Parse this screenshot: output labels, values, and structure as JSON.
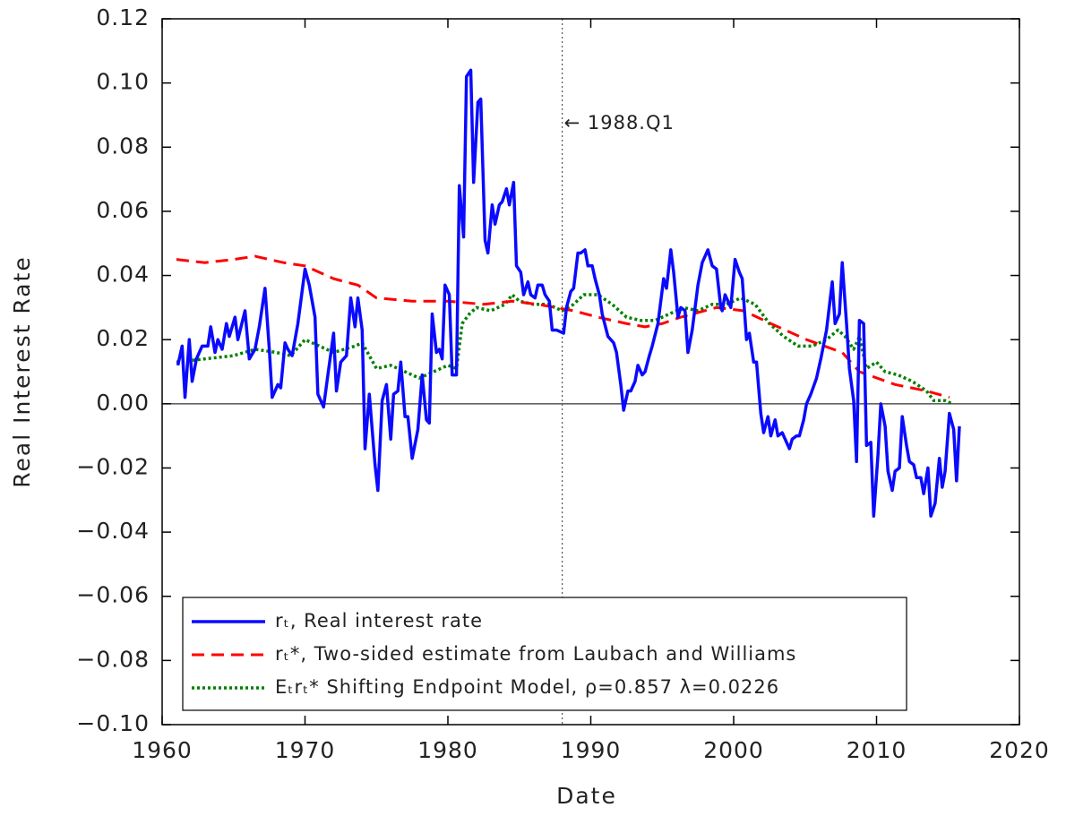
{
  "chart_data": {
    "type": "line",
    "xlabel": "Date",
    "ylabel": "Real Interest Rate",
    "xlim": [
      1960,
      2020
    ],
    "xticks": [
      1960,
      1970,
      1980,
      1990,
      2000,
      2010,
      2020
    ],
    "ylim": [
      -0.1,
      0.12
    ],
    "yticks": [
      0.12,
      {
        "value": 0.1,
        "label": "0.10"
      },
      0.08,
      0.06,
      0.04,
      0.02,
      {
        "value": 0,
        "label": "0.00"
      },
      {
        "value": -0.02,
        "label": "−0.02"
      },
      {
        "value": -0.04,
        "label": "−0.04"
      },
      {
        "value": -0.06,
        "label": "−0.06"
      },
      {
        "value": -0.08,
        "label": "−0.08"
      },
      {
        "value": -0.1,
        "label": "−0.10"
      }
    ],
    "hline": 0,
    "vline": {
      "x": 1988,
      "label": "← 1988.Q1"
    },
    "legend": "lower left",
    "series": [
      {
        "name": "rₜ, Real interest rate",
        "color": "#0a0aff",
        "dash": "solid",
        "x": [
          1961.1,
          1961.4,
          1961.6,
          1961.9,
          1962.1,
          1962.4,
          1962.8,
          1963.2,
          1963.4,
          1963.7,
          1963.9,
          1964.2,
          1964.5,
          1964.7,
          1965.1,
          1965.3,
          1965.8,
          1966.1,
          1966.5,
          1966.8,
          1967.2,
          1967.5,
          1967.7,
          1968.1,
          1968.3,
          1968.6,
          1968.8,
          1969.1,
          1969.5,
          1970.0,
          1970.3,
          1970.7,
          1970.9,
          1971.3,
          1971.6,
          1972.0,
          1972.2,
          1972.5,
          1972.9,
          1973.2,
          1973.5,
          1973.7,
          1974.0,
          1974.2,
          1974.5,
          1974.9,
          1975.1,
          1975.4,
          1975.7,
          1976.0,
          1976.2,
          1976.5,
          1976.7,
          1977.0,
          1977.2,
          1977.5,
          1977.9,
          1978.2,
          1978.5,
          1978.7,
          1978.9,
          1979.2,
          1979.4,
          1979.6,
          1979.8,
          1980.1,
          1980.3,
          1980.6,
          1980.8,
          1981.1,
          1981.3,
          1981.6,
          1981.8,
          1982.1,
          1982.3,
          1982.6,
          1982.8,
          1983.1,
          1983.3,
          1983.6,
          1983.8,
          1984.1,
          1984.3,
          1984.6,
          1984.8,
          1985.1,
          1985.3,
          1985.6,
          1985.8,
          1986.1,
          1986.3,
          1986.6,
          1986.8,
          1987.1,
          1987.3,
          1987.6,
          1988.1,
          1988.3,
          1988.6,
          1988.8,
          1989.1,
          1989.3,
          1989.6,
          1989.8,
          1990.1,
          1990.3,
          1990.6,
          1990.8,
          1991.2,
          1991.6,
          1991.8,
          1992.1,
          1992.3,
          1992.6,
          1992.8,
          1993.1,
          1993.3,
          1993.6,
          1993.8,
          1994.1,
          1994.3,
          1994.7,
          1995.1,
          1995.3,
          1995.6,
          1995.8,
          1996.1,
          1996.3,
          1996.6,
          1996.8,
          1997.1,
          1997.5,
          1997.8,
          1998.2,
          1998.5,
          1998.8,
          1999.1,
          1999.2,
          1999.4,
          1999.8,
          2000.1,
          2000.4,
          2000.6,
          2000.9,
          2001.1,
          2001.4,
          2001.6,
          2001.9,
          2002.1,
          2002.4,
          2002.6,
          2002.9,
          2003.1,
          2003.4,
          2003.6,
          2003.9,
          2004.1,
          2004.4,
          2004.6,
          2004.9,
          2005.1,
          2005.4,
          2005.8,
          2006.1,
          2006.5,
          2006.9,
          2007.1,
          2007.4,
          2007.6,
          2007.9,
          2008.1,
          2008.4,
          2008.6,
          2008.8,
          2009.1,
          2009.3,
          2009.6,
          2009.8,
          2010.1,
          2010.3,
          2010.6,
          2010.8,
          2011.1,
          2011.3,
          2011.6,
          2011.8,
          2012.1,
          2012.3,
          2012.6,
          2012.8,
          2013.1,
          2013.3,
          2013.6,
          2013.8,
          2014.1,
          2014.4,
          2014.6,
          2014.8,
          2015.1,
          2015.4,
          2015.6,
          2015.8
        ],
        "values": [
          0.012,
          0.018,
          0.002,
          0.02,
          0.007,
          0.014,
          0.018,
          0.018,
          0.024,
          0.016,
          0.02,
          0.017,
          0.025,
          0.021,
          0.027,
          0.02,
          0.029,
          0.014,
          0.017,
          0.024,
          0.036,
          0.017,
          0.002,
          0.006,
          0.005,
          0.019,
          0.017,
          0.015,
          0.025,
          0.042,
          0.037,
          0.027,
          0.003,
          -0.001,
          0.009,
          0.022,
          0.004,
          0.013,
          0.015,
          0.033,
          0.024,
          0.033,
          0.023,
          -0.014,
          0.003,
          -0.019,
          -0.027,
          0.001,
          0.006,
          -0.011,
          0.003,
          0.004,
          0.013,
          -0.004,
          -0.004,
          -0.017,
          -0.008,
          0.009,
          -0.005,
          -0.006,
          0.028,
          0.016,
          0.017,
          0.014,
          0.037,
          0.034,
          0.009,
          0.009,
          0.068,
          0.052,
          0.102,
          0.104,
          0.069,
          0.094,
          0.095,
          0.051,
          0.047,
          0.062,
          0.056,
          0.062,
          0.063,
          0.067,
          0.062,
          0.069,
          0.043,
          0.041,
          0.034,
          0.038,
          0.034,
          0.033,
          0.037,
          0.037,
          0.034,
          0.032,
          0.023,
          0.023,
          0.022,
          0.03,
          0.035,
          0.036,
          0.047,
          0.047,
          0.048,
          0.043,
          0.043,
          0.039,
          0.034,
          0.028,
          0.021,
          0.019,
          0.016,
          0.006,
          -0.002,
          0.004,
          0.004,
          0.007,
          0.012,
          0.009,
          0.01,
          0.015,
          0.018,
          0.025,
          0.039,
          0.036,
          0.048,
          0.041,
          0.027,
          0.03,
          0.029,
          0.016,
          0.023,
          0.037,
          0.044,
          0.048,
          0.043,
          0.042,
          0.03,
          0.029,
          0.034,
          0.03,
          0.045,
          0.041,
          0.039,
          0.02,
          0.022,
          0.013,
          0.013,
          -0.003,
          -0.009,
          -0.004,
          -0.01,
          -0.005,
          -0.01,
          -0.009,
          -0.011,
          -0.014,
          -0.011,
          -0.01,
          -0.01,
          -0.005,
          0.0,
          0.003,
          0.008,
          0.014,
          0.023,
          0.038,
          0.025,
          0.028,
          0.044,
          0.025,
          0.011,
          0.001,
          -0.018,
          0.026,
          0.025,
          -0.013,
          -0.012,
          -0.035,
          -0.016,
          0.0,
          -0.007,
          -0.021,
          -0.027,
          -0.021,
          -0.02,
          -0.004,
          -0.013,
          -0.018,
          -0.019,
          -0.023,
          -0.023,
          -0.028,
          -0.02,
          -0.035,
          -0.031,
          -0.017,
          -0.026,
          -0.021,
          -0.003,
          -0.008,
          -0.024,
          -0.007
        ]
      },
      {
        "name": "rₜ*, Two-sided estimate from Laubach and Williams",
        "color": "#ff0000",
        "dash": "dashed",
        "x": [
          1961,
          1963,
          1965,
          1966.5,
          1968.5,
          1970,
          1972,
          1973.7,
          1975,
          1977.5,
          1980,
          1982.5,
          1984.5,
          1986.3,
          1988.8,
          1990.5,
          1992.5,
          1993.8,
          1995,
          1996.3,
          1998.8,
          2000.7,
          2002.6,
          2005.1,
          2007.6,
          2008.8,
          2011.3,
          2013.5,
          2015.1
        ],
        "values": [
          0.045,
          0.044,
          0.045,
          0.046,
          0.044,
          0.043,
          0.039,
          0.037,
          0.033,
          0.032,
          0.032,
          0.031,
          0.032,
          0.031,
          0.029,
          0.027,
          0.025,
          0.024,
          0.025,
          0.027,
          0.03,
          0.029,
          0.025,
          0.02,
          0.016,
          0.01,
          0.006,
          0.004,
          0.002
        ]
      },
      {
        "name": "Eₜrₜ* Shifting Endpoint Model, ρ=0.857 λ=0.0226",
        "color": "#008000",
        "dash": "dotted",
        "x": [
          1961,
          1963,
          1965,
          1966.5,
          1968,
          1969,
          1970,
          1971,
          1972,
          1973.5,
          1974,
          1975,
          1976,
          1977,
          1978,
          1979,
          1980,
          1980.6,
          1981,
          1981.5,
          1982,
          1983,
          1984,
          1984.5,
          1985,
          1986,
          1987,
          1988,
          1988.8,
          1989.5,
          1990.5,
          1991.5,
          1992.5,
          1993.5,
          1994.5,
          1995.5,
          1996.5,
          1997.5,
          1998.5,
          1999.5,
          2000.5,
          2001.5,
          2002.5,
          2003.5,
          2004.5,
          2005.5,
          2006.5,
          2007.3,
          2007.8,
          2008.4,
          2008.8,
          2009.3,
          2010,
          2010.6,
          2011.5,
          2012.5,
          2013.5,
          2014,
          2014.8,
          2015.3
        ],
        "values": [
          0.013,
          0.014,
          0.015,
          0.017,
          0.016,
          0.015,
          0.02,
          0.018,
          0.016,
          0.018,
          0.019,
          0.011,
          0.012,
          0.01,
          0.008,
          0.01,
          0.012,
          0.011,
          0.025,
          0.028,
          0.03,
          0.029,
          0.031,
          0.034,
          0.032,
          0.031,
          0.031,
          0.029,
          0.031,
          0.034,
          0.034,
          0.031,
          0.027,
          0.026,
          0.026,
          0.028,
          0.03,
          0.029,
          0.031,
          0.031,
          0.033,
          0.031,
          0.025,
          0.021,
          0.018,
          0.018,
          0.02,
          0.023,
          0.021,
          0.017,
          0.021,
          0.011,
          0.013,
          0.01,
          0.009,
          0.007,
          0.004,
          0.001,
          0.001,
          0.0
        ]
      }
    ]
  }
}
